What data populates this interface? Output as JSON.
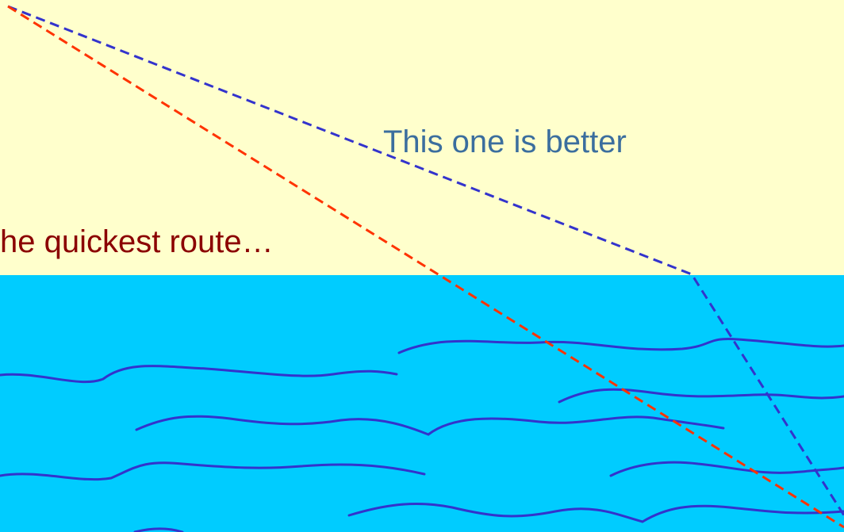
{
  "labels": {
    "better": "This one is better",
    "quickest": "he quickest route…"
  }
}
